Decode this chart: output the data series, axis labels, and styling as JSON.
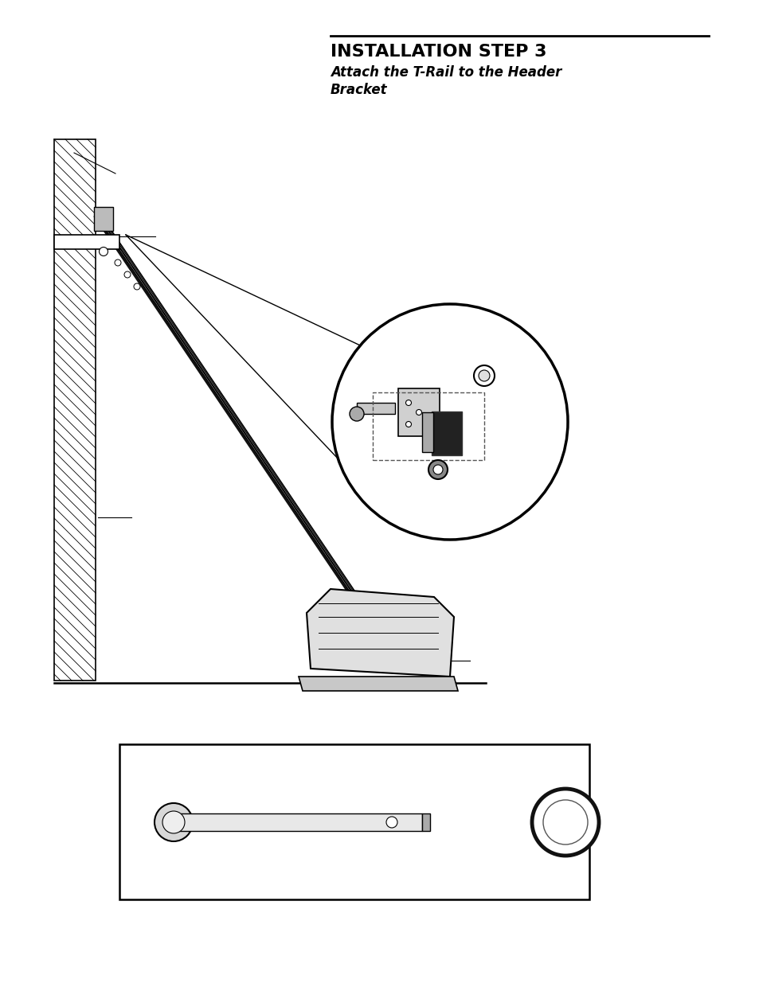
{
  "title": "INSTALLATION STEP 3",
  "subtitle": "Attach the T-Rail to the Header\nBracket",
  "bg_color": "#ffffff",
  "line_color": "#000000",
  "title_fontsize": 16,
  "subtitle_fontsize": 12,
  "page_width": 9.54,
  "page_height": 12.35
}
